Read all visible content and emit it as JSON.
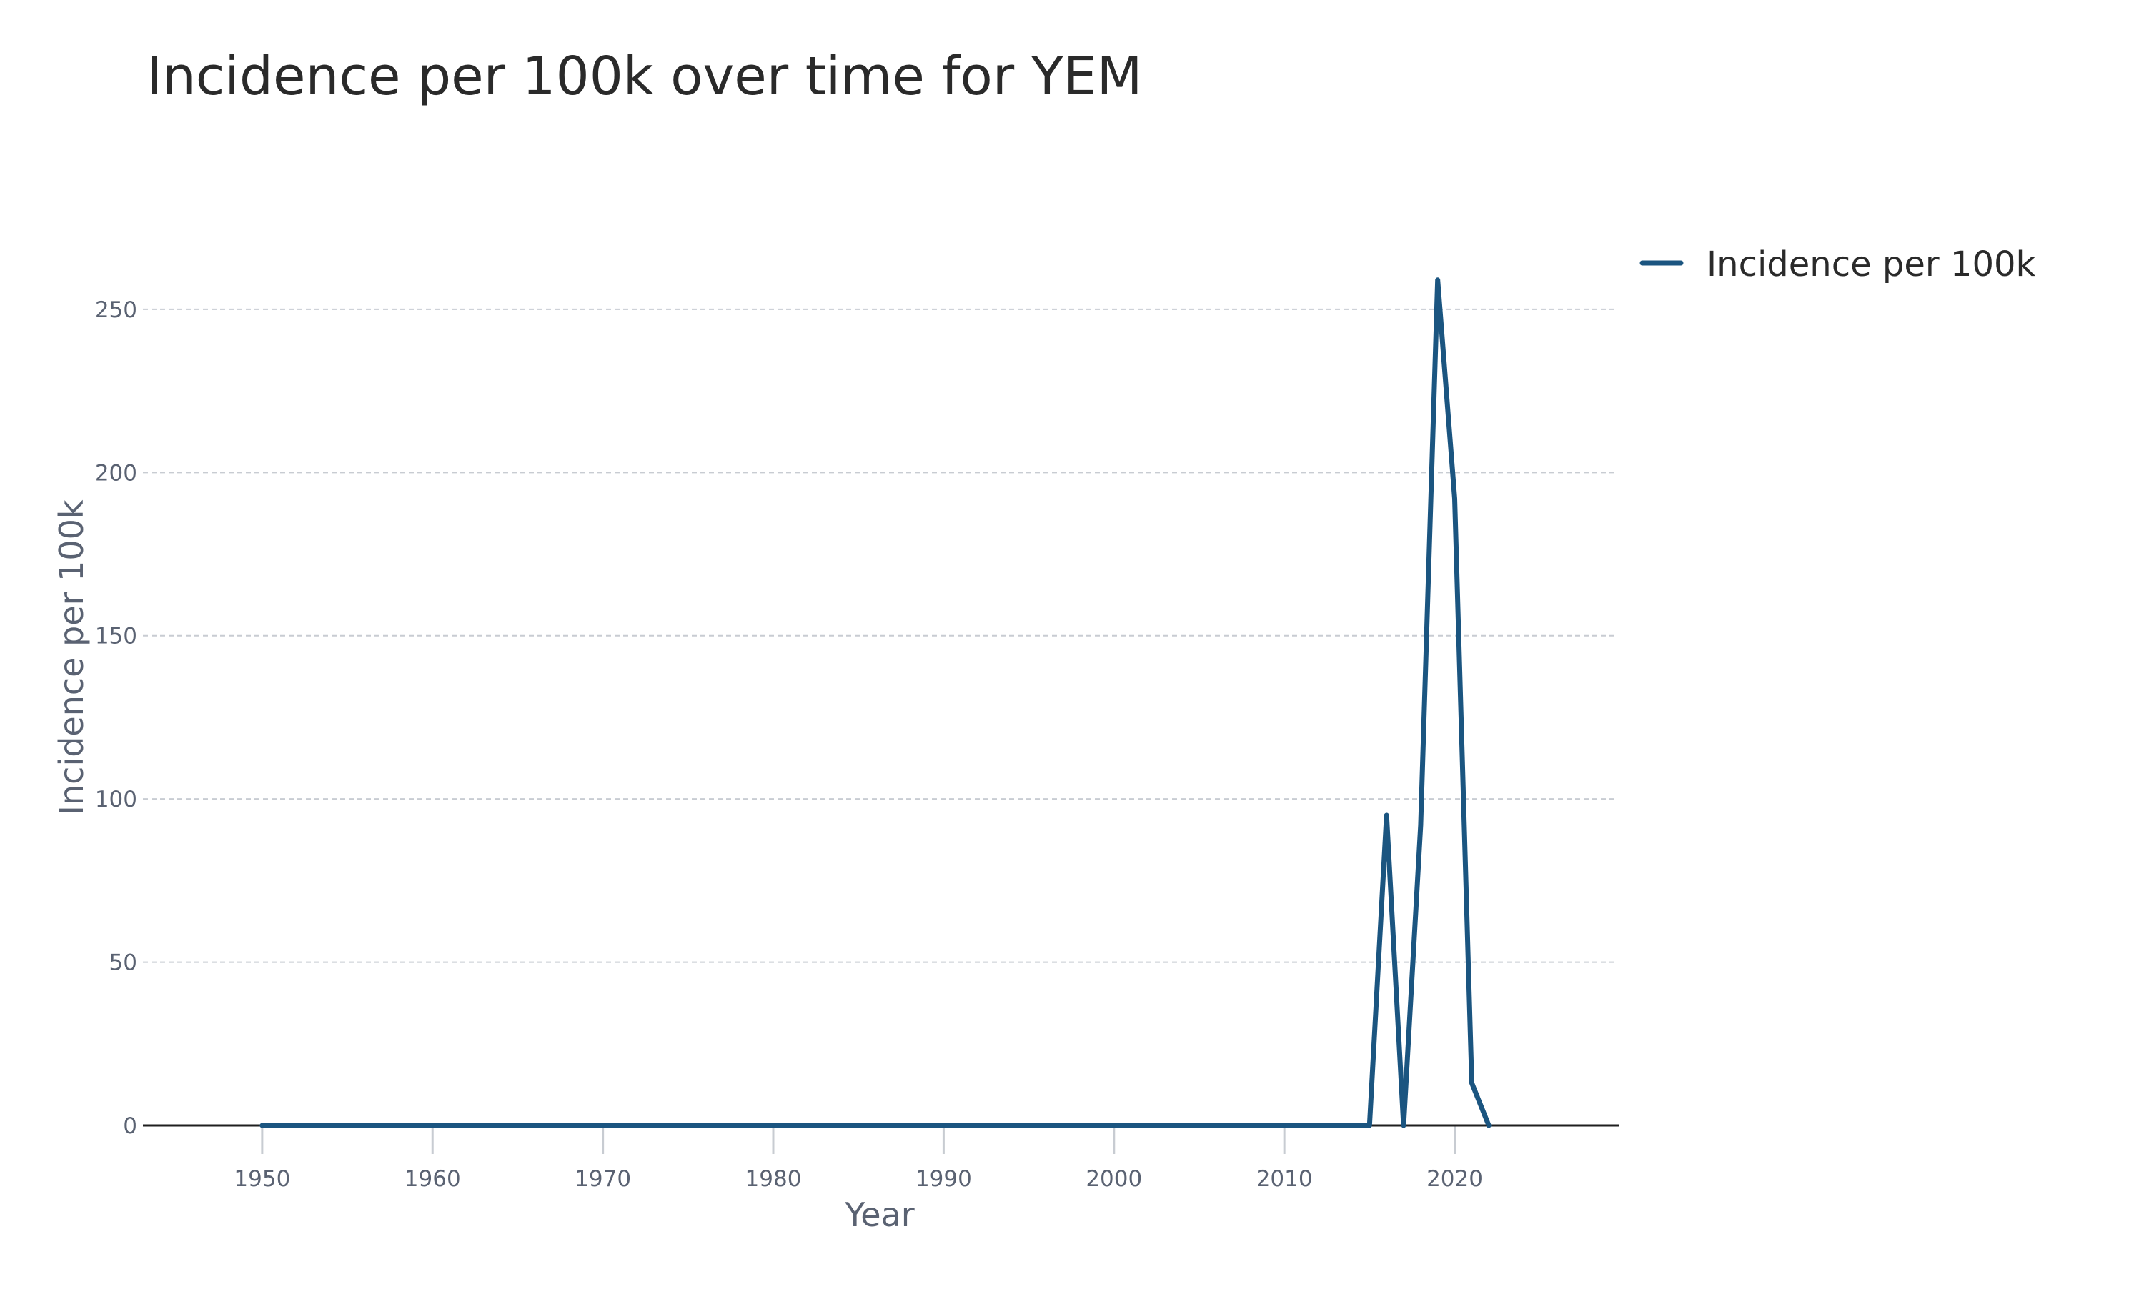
{
  "chart_data": {
    "type": "line",
    "title": "Incidence per 100k over time for YEM",
    "xlabel": "Year",
    "ylabel": "Incidence per 100k",
    "xlim": [
      1943,
      2029.5
    ],
    "ylim": [
      0,
      278
    ],
    "x_ticks": [
      1950,
      1960,
      1970,
      1980,
      1990,
      2000,
      2010,
      2020
    ],
    "y_ticks": [
      0,
      50,
      100,
      150,
      200,
      250
    ],
    "grid": true,
    "legend_position": "top-right",
    "series": [
      {
        "name": "Incidence per 100k",
        "color": "#1b5580",
        "x": [
          1950,
          1951,
          1952,
          1953,
          1954,
          1955,
          1956,
          1957,
          1958,
          1959,
          1960,
          1961,
          1962,
          1963,
          1964,
          1965,
          1966,
          1967,
          1968,
          1969,
          1970,
          1971,
          1972,
          1973,
          1974,
          1975,
          1976,
          1977,
          1978,
          1979,
          1980,
          1981,
          1982,
          1983,
          1984,
          1985,
          1986,
          1987,
          1988,
          1989,
          1990,
          1991,
          1992,
          1993,
          1994,
          1995,
          1996,
          1997,
          1998,
          1999,
          2000,
          2001,
          2002,
          2003,
          2004,
          2005,
          2006,
          2007,
          2008,
          2009,
          2010,
          2011,
          2012,
          2013,
          2014,
          2015,
          2016,
          2017,
          2018,
          2019,
          2020,
          2021,
          2022
        ],
        "values": [
          0,
          0,
          0,
          0,
          0,
          0,
          0,
          0,
          0,
          0,
          0,
          0,
          0,
          0,
          0,
          0,
          0,
          0,
          0,
          0,
          0,
          0,
          0,
          0,
          0,
          0,
          0,
          0,
          0,
          0,
          0,
          0,
          0,
          0,
          0,
          0,
          0,
          0,
          0,
          0,
          0,
          0,
          0,
          0,
          0,
          0,
          0,
          0,
          0,
          0,
          0,
          0,
          0,
          0,
          0,
          0,
          0,
          0,
          0,
          0,
          0,
          0,
          0,
          0,
          0,
          0,
          95,
          0,
          92,
          259,
          192,
          13,
          0
        ]
      }
    ]
  }
}
